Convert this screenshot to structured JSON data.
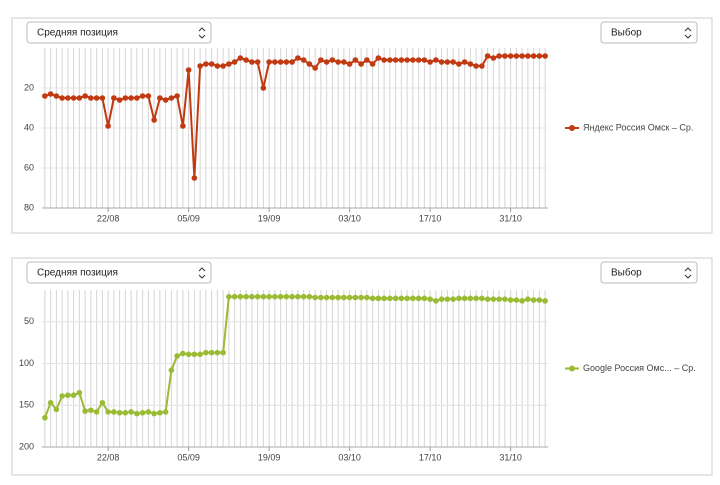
{
  "chart_data": [
    {
      "type": "line",
      "selector": "Средняя позиция",
      "button": "Выбор",
      "categories": [
        null,
        null,
        null,
        null,
        null,
        null,
        null,
        null,
        null,
        null,
        null,
        "22/08",
        null,
        null,
        null,
        null,
        null,
        null,
        null,
        null,
        null,
        null,
        null,
        null,
        null,
        "05/09",
        null,
        null,
        null,
        null,
        null,
        null,
        null,
        null,
        null,
        null,
        null,
        null,
        null,
        "19/09",
        null,
        null,
        null,
        null,
        null,
        null,
        null,
        null,
        null,
        null,
        null,
        null,
        null,
        "03/10",
        null,
        null,
        null,
        null,
        null,
        null,
        null,
        null,
        null,
        null,
        null,
        null,
        null,
        "17/10",
        null,
        null,
        null,
        null,
        null,
        null,
        null,
        null,
        null,
        null,
        null,
        null,
        null,
        "31/10",
        null,
        null,
        null,
        null,
        null,
        null
      ],
      "series": [
        {
          "name": "Яндекс Россия Омск – Ср.",
          "color": "#c23a12",
          "values": [
            24,
            23,
            24,
            25,
            25,
            25,
            25,
            24,
            25,
            25,
            25,
            39,
            25,
            26,
            25,
            25,
            25,
            24,
            24,
            36,
            25,
            26,
            25,
            24,
            39,
            11,
            65,
            9,
            8,
            8,
            9,
            9,
            8,
            7,
            5,
            6,
            7,
            7,
            20,
            7,
            7,
            7,
            7,
            7,
            5,
            6,
            8,
            10,
            6,
            7,
            6,
            7,
            7,
            8,
            6,
            8,
            6,
            8,
            5,
            6,
            6,
            6,
            6,
            6,
            6,
            6,
            6,
            7,
            6,
            7,
            7,
            7,
            8,
            7,
            8,
            9,
            9,
            4,
            5,
            4,
            4,
            4,
            4,
            4,
            4,
            4,
            4,
            4
          ]
        }
      ],
      "ylim": [
        0,
        80
      ],
      "yticks": [
        20,
        40,
        60,
        80
      ],
      "reversed": true,
      "grid": true
    },
    {
      "type": "line",
      "selector": "Средняя позиция",
      "button": "Выбор",
      "categories": [
        null,
        null,
        null,
        null,
        null,
        null,
        null,
        null,
        null,
        null,
        null,
        "22/08",
        null,
        null,
        null,
        null,
        null,
        null,
        null,
        null,
        null,
        null,
        null,
        null,
        null,
        "05/09",
        null,
        null,
        null,
        null,
        null,
        null,
        null,
        null,
        null,
        null,
        null,
        null,
        null,
        "19/09",
        null,
        null,
        null,
        null,
        null,
        null,
        null,
        null,
        null,
        null,
        null,
        null,
        null,
        "03/10",
        null,
        null,
        null,
        null,
        null,
        null,
        null,
        null,
        null,
        null,
        null,
        null,
        null,
        "17/10",
        null,
        null,
        null,
        null,
        null,
        null,
        null,
        null,
        null,
        null,
        null,
        null,
        null,
        "31/10",
        null,
        null,
        null,
        null,
        null,
        null
      ],
      "series": [
        {
          "name": "Google Россия Омс... – Ср.",
          "color": "#9bbb34",
          "values": [
            165,
            147,
            155,
            139,
            138,
            138,
            135,
            157,
            156,
            158,
            147,
            158,
            158,
            159,
            159,
            158,
            160,
            159,
            158,
            160,
            159,
            158,
            108,
            91,
            88,
            89,
            89,
            89,
            87,
            87,
            87,
            87,
            20,
            20,
            20,
            20,
            20,
            20,
            20,
            20,
            20,
            20,
            20,
            20,
            20,
            20,
            20,
            21,
            21,
            21,
            21,
            21,
            21,
            21,
            21,
            21,
            21,
            22,
            22,
            22,
            22,
            22,
            22,
            22,
            22,
            22,
            22,
            23,
            25,
            23,
            23,
            23,
            22,
            22,
            22,
            22,
            22,
            23,
            23,
            23,
            23,
            24,
            24,
            25,
            23,
            24,
            24,
            25
          ]
        }
      ],
      "ylim": [
        12,
        200
      ],
      "yticks": [
        50,
        100,
        150,
        200
      ],
      "reversed": true,
      "grid": true
    }
  ]
}
